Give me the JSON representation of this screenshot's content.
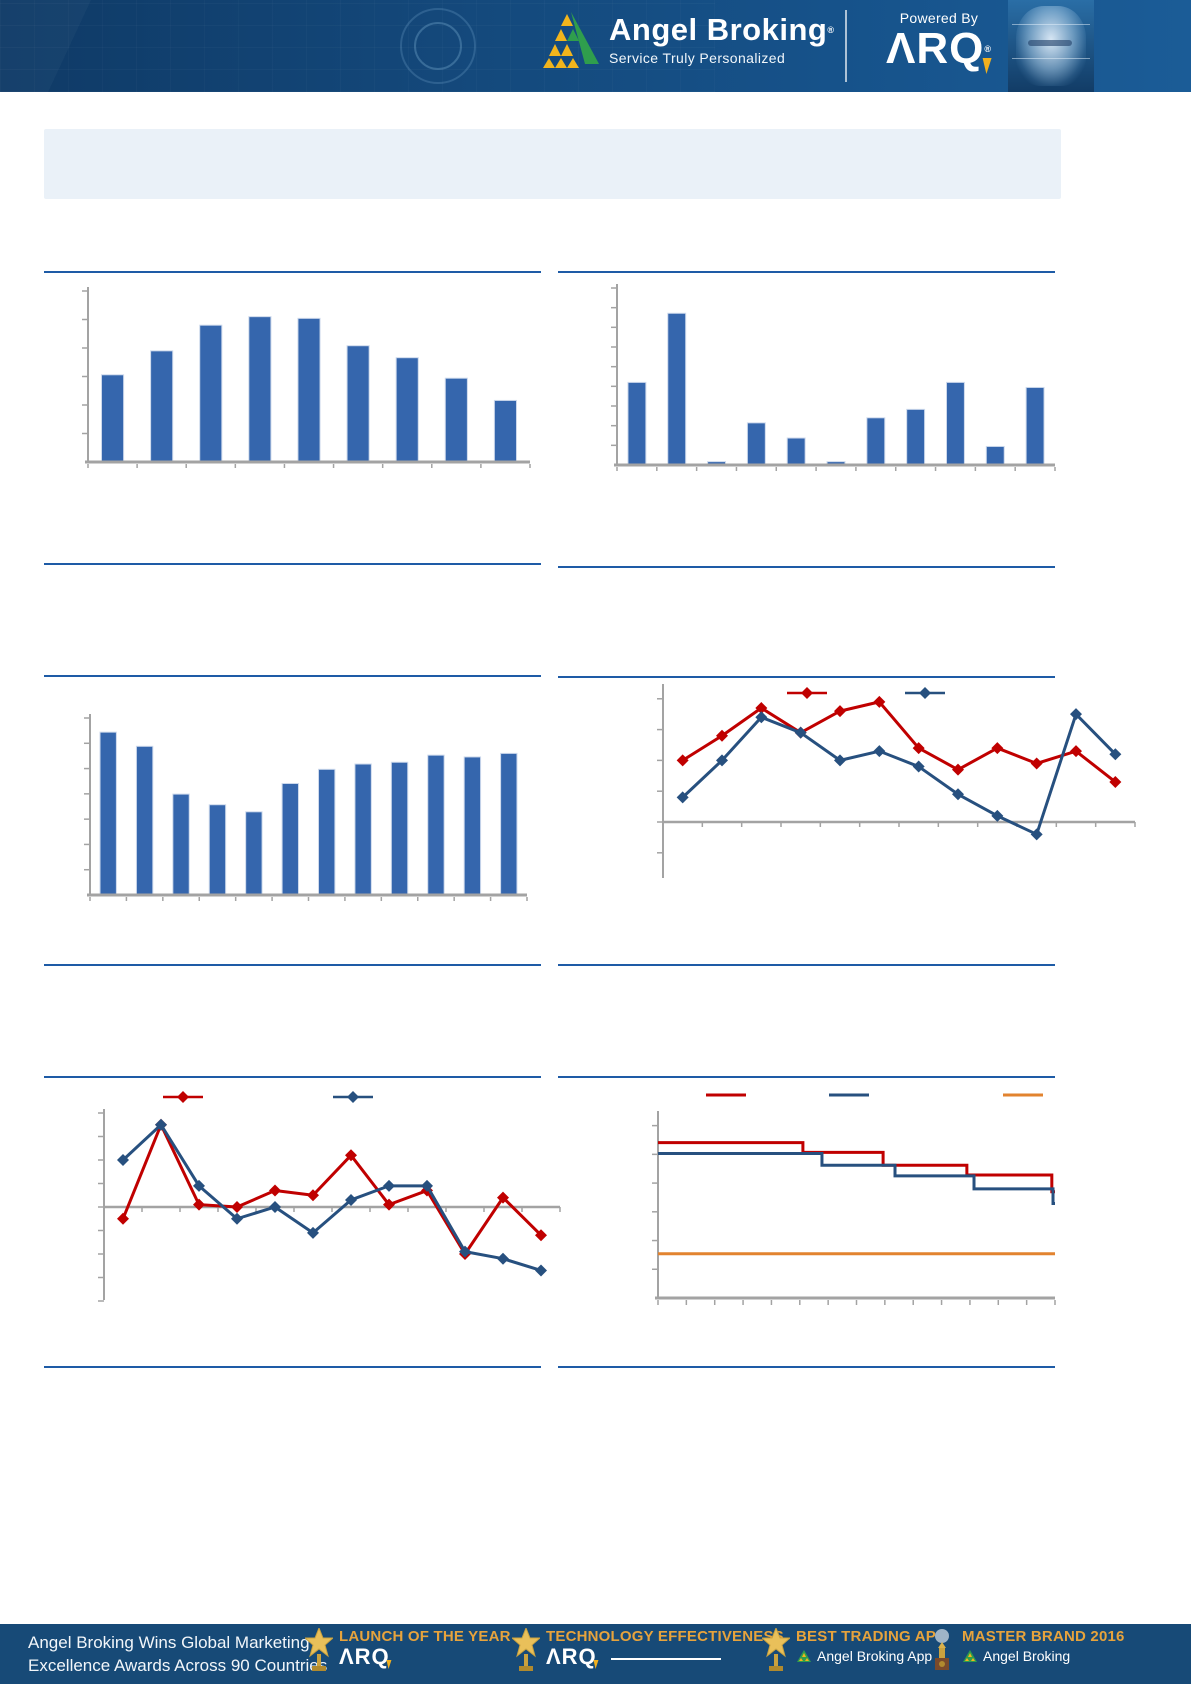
{
  "header": {
    "brand": "Angel Broking",
    "brand_reg": "®",
    "tagline": "Service Truly Personalized",
    "powered_by": "Powered By",
    "arq": "ΛRQ",
    "arq_reg": "®"
  },
  "title_box": {
    "text": ""
  },
  "palette": {
    "bar_blue": "#3566ad",
    "line_red": "#c00000",
    "line_blue": "#27507f",
    "line_orange": "#e2832f",
    "divider_blue": "#1e5ba6",
    "header_blue": "#16528a",
    "footer_blue": "#174a77",
    "award_gold": "#e7a33c",
    "axis_gray": "#a3a3a3"
  },
  "chart_data": [
    {
      "id": "bar-chart-top-left",
      "type": "bar",
      "categories": [
        "",
        "",
        "",
        "",
        "",
        "",
        "",
        "",
        ""
      ],
      "values": [
        51,
        65,
        80,
        85,
        84,
        68,
        61,
        49,
        36
      ],
      "title": "",
      "xlabel": "",
      "ylabel": "",
      "ylim": [
        0,
        100
      ],
      "bar_color": "#3566ad",
      "grid": false,
      "tick_labels_visible": false
    },
    {
      "id": "bar-chart-top-right",
      "type": "bar",
      "categories": [
        "",
        "",
        "",
        "",
        "",
        "",
        "",
        "",
        "",
        "",
        ""
      ],
      "values": [
        49,
        90,
        2,
        25,
        16,
        2,
        28,
        33,
        49,
        11,
        46
      ],
      "title": "",
      "xlabel": "",
      "ylabel": "",
      "ylim": [
        0,
        105
      ],
      "bar_color": "#3566ad",
      "grid": false,
      "tick_labels_visible": false
    },
    {
      "id": "bar-chart-mid-left",
      "type": "bar",
      "categories": [
        "",
        "",
        "",
        "",
        "",
        "",
        "",
        "",
        "",
        "",
        "",
        ""
      ],
      "values": [
        92,
        84,
        57,
        51,
        47,
        63,
        71,
        74,
        75,
        79,
        78,
        80
      ],
      "title": "",
      "xlabel": "",
      "ylabel": "",
      "ylim": [
        0,
        100
      ],
      "bar_color": "#3566ad",
      "grid": false,
      "tick_labels_visible": false
    },
    {
      "id": "line-chart-mid-right",
      "type": "line",
      "x": [
        1,
        2,
        3,
        4,
        5,
        6,
        7,
        8,
        9,
        10,
        11,
        12
      ],
      "series": [
        {
          "name": "series-red",
          "color": "#c00000",
          "marker": "diamond",
          "values": [
            2.0,
            2.8,
            3.7,
            2.9,
            3.6,
            3.9,
            2.4,
            1.7,
            2.4,
            1.9,
            2.3,
            1.3
          ]
        },
        {
          "name": "series-blue",
          "color": "#27507f",
          "marker": "diamond",
          "values": [
            0.8,
            2.0,
            3.4,
            2.9,
            2.0,
            2.3,
            1.8,
            0.9,
            0.2,
            -0.4,
            3.5,
            2.2
          ]
        }
      ],
      "title": "",
      "xlabel": "",
      "ylabel": "",
      "ylim": [
        -1.8,
        4.35
      ],
      "legend_position": "top",
      "grid": false,
      "tick_labels_visible": false
    },
    {
      "id": "line-chart-bottom-left",
      "type": "line",
      "x": [
        1,
        2,
        3,
        4,
        5,
        6,
        7,
        8,
        9,
        10,
        11,
        12
      ],
      "series": [
        {
          "name": "series-red",
          "color": "#c00000",
          "marker": "diamond",
          "values": [
            -0.5,
            3.5,
            0.1,
            0.0,
            0.7,
            0.5,
            2.2,
            0.1,
            0.7,
            -2.0,
            0.4,
            -1.2
          ]
        },
        {
          "name": "series-blue",
          "color": "#27507f",
          "marker": "diamond",
          "values": [
            2.0,
            3.5,
            0.9,
            -0.5,
            0.0,
            -1.1,
            0.3,
            0.9,
            0.9,
            -1.9,
            -2.2,
            -2.7
          ]
        }
      ],
      "title": "",
      "xlabel": "",
      "ylabel": "",
      "ylim": [
        -4,
        4
      ],
      "legend_position": "top",
      "grid": false,
      "tick_labels_visible": false
    },
    {
      "id": "step-chart-bottom-right",
      "type": "step",
      "series": [
        {
          "name": "series-red",
          "color": "#c00000",
          "breaks": [
            0,
            36.5,
            56.7,
            77.8,
            99.2,
            100
          ],
          "levels": [
            5.41,
            5.07,
            4.62,
            4.28,
            3.7
          ]
        },
        {
          "name": "series-blue",
          "color": "#27507f",
          "breaks": [
            0,
            41.3,
            59.7,
            79.6,
            99.5,
            100
          ],
          "levels": [
            5.03,
            4.62,
            4.25,
            3.8,
            3.29
          ]
        },
        {
          "name": "series-orange",
          "color": "#e2832f",
          "breaks": [
            0,
            100
          ],
          "levels": [
            1.54
          ]
        }
      ],
      "title": "",
      "xlabel": "",
      "ylabel": "",
      "ylim": [
        0,
        6.3
      ],
      "legend_position": "top",
      "grid": false,
      "tick_labels_visible": false
    }
  ],
  "footer": {
    "headline_line1": "Angel Broking Wins Global Marketing",
    "headline_line2": "Excellence Awards Across 90 Countries",
    "awards": [
      {
        "title": "LAUNCH OF THE YEAR",
        "subtitle": "ΛRQ",
        "icon": "trophy-star-icon"
      },
      {
        "title": "TECHNOLOGY EFFECTIVENESS",
        "subtitle": "ΛRQ",
        "icon": "trophy-star-icon"
      },
      {
        "title": "BEST TRADING APP",
        "subtitle": "Angel Broking App",
        "icon": "trophy-star-icon"
      },
      {
        "title": "MASTER BRAND 2016",
        "subtitle": "Angel Broking",
        "icon": "trophy-globe-icon"
      }
    ]
  }
}
